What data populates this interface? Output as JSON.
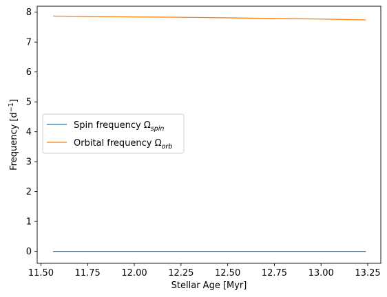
{
  "chart_data": {
    "type": "line",
    "title": "",
    "xlabel": "Stellar Age [Myr]",
    "ylabel": "Frequency [d",
    "ylabel_sup": "−1",
    "ylabel_tail": "]",
    "xlim": [
      11.48,
      13.32
    ],
    "ylim": [
      -0.4,
      8.2
    ],
    "x_ticks": [
      11.5,
      11.75,
      12.0,
      12.25,
      12.5,
      12.75,
      13.0,
      13.25
    ],
    "x_tick_labels": [
      "11.50",
      "11.75",
      "12.00",
      "12.25",
      "12.50",
      "12.75",
      "13.00",
      "13.25"
    ],
    "y_ticks": [
      0,
      1,
      2,
      3,
      4,
      5,
      6,
      7,
      8
    ],
    "y_tick_labels": [
      "0",
      "1",
      "2",
      "3",
      "4",
      "5",
      "6",
      "7",
      "8"
    ],
    "grid": false,
    "legend_position": "center-left",
    "series": [
      {
        "name": "Spin frequency Ω",
        "name_sub": "spin",
        "color": "#1f77b4",
        "x": [
          11.565,
          11.75,
          12.0,
          12.25,
          12.5,
          12.75,
          13.0,
          13.24
        ],
        "y": [
          0.0,
          0.0,
          0.0,
          0.0,
          0.0,
          0.0,
          0.0,
          0.0
        ]
      },
      {
        "name": "Orbital frequency Ω",
        "name_sub": "orb",
        "color": "#ff7f0e",
        "x": [
          11.565,
          11.75,
          12.0,
          12.25,
          12.5,
          12.75,
          13.0,
          13.24
        ],
        "y": [
          7.87,
          7.86,
          7.84,
          7.83,
          7.81,
          7.79,
          7.77,
          7.74
        ]
      }
    ]
  }
}
